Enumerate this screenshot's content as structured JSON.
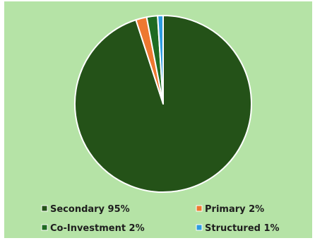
{
  "colors": {
    "background": "#b5e3a6",
    "slice_border": "#ffffff"
  },
  "chart_data": {
    "type": "pie",
    "start_angle_deg": 0,
    "direction": "clockwise",
    "slices": [
      {
        "label": "Secondary",
        "value": 95,
        "legend": "Secondary 95%",
        "color": "#245218"
      },
      {
        "label": "Primary",
        "value": 2,
        "legend": "Primary 2%",
        "color": "#ee7830"
      },
      {
        "label": "Co-Investment",
        "value": 2,
        "legend": "Co-Investment 2%",
        "color": "#1f6b22"
      },
      {
        "label": "Structured",
        "value": 1,
        "legend": "Structured 1%",
        "color": "#2c9be0"
      }
    ],
    "legend_position": "bottom"
  }
}
